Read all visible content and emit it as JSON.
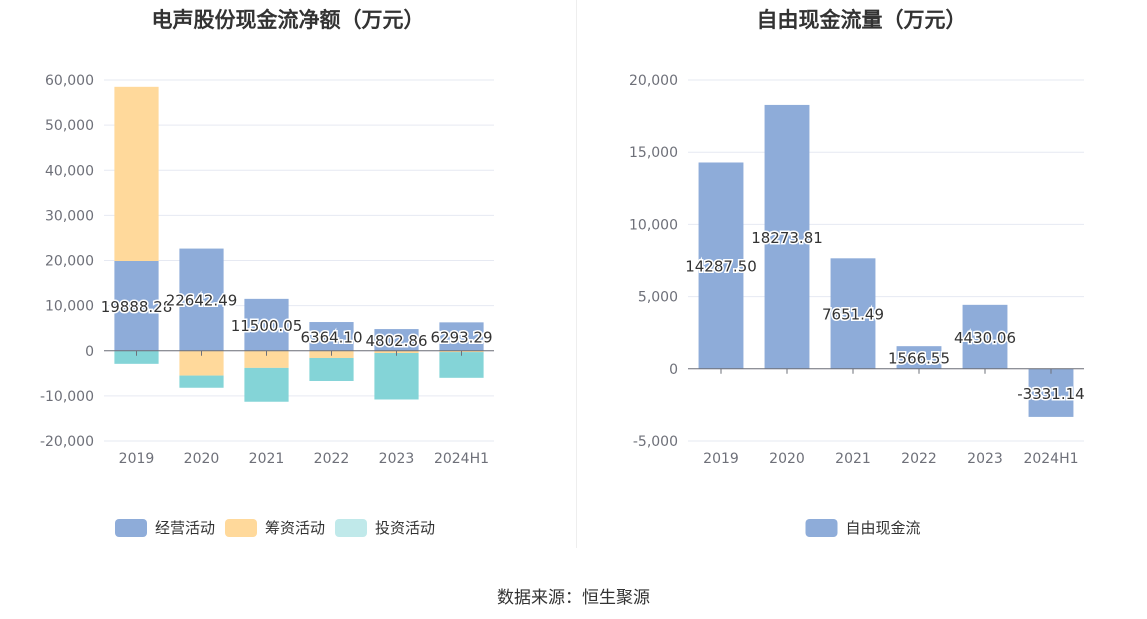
{
  "source_text": "数据来源：恒生聚源",
  "chart_data": [
    {
      "type": "bar",
      "stacked": true,
      "title": "电声股份现金流净额（万元）",
      "categories": [
        "2019",
        "2020",
        "2021",
        "2022",
        "2023",
        "2024H1"
      ],
      "ylim": [
        -20000,
        60000
      ],
      "yticks": [
        60000,
        50000,
        40000,
        30000,
        20000,
        10000,
        0,
        -10000,
        -20000
      ],
      "ytick_labels": [
        "60,000",
        "50,000",
        "40,000",
        "30,000",
        "20,000",
        "10,000",
        "0",
        "-10,000",
        "-20,000"
      ],
      "grid": true,
      "legend_position": "bottom",
      "series": [
        {
          "name": "经营活动",
          "color": "#8eacd9",
          "values": [
            19888.28,
            22642.49,
            11500.05,
            6364.1,
            4802.86,
            6293.29
          ]
        },
        {
          "name": "筹资活动",
          "color": "#ffd99b",
          "values": [
            38600,
            -5500,
            -3800,
            -1600,
            -500,
            -300
          ]
        },
        {
          "name": "投资活动",
          "color": "#84d4d7",
          "legend_color": "#c0e9ea",
          "values": [
            -2900,
            -2700,
            -7500,
            -5100,
            -10300,
            -5700
          ]
        }
      ],
      "data_labels": [
        "19888.28",
        "22642.49",
        "11500.05",
        "6364.10",
        "4802.86",
        "6293.29"
      ]
    },
    {
      "type": "bar",
      "title": "自由现金流量（万元）",
      "categories": [
        "2019",
        "2020",
        "2021",
        "2022",
        "2023",
        "2024H1"
      ],
      "ylim": [
        -5000,
        20000
      ],
      "yticks": [
        20000,
        15000,
        10000,
        5000,
        0,
        -5000
      ],
      "ytick_labels": [
        "20,000",
        "15,000",
        "10,000",
        "5,000",
        "0",
        "-5,000"
      ],
      "grid": true,
      "legend_position": "bottom",
      "series": [
        {
          "name": "自由现金流",
          "color": "#8eacd9",
          "values": [
            14287.5,
            18273.81,
            7651.49,
            1566.55,
            4430.06,
            -3331.14
          ]
        }
      ],
      "data_labels": [
        "14287.50",
        "18273.81",
        "7651.49",
        "1566.55",
        "4430.06",
        "-3331.14"
      ]
    }
  ]
}
